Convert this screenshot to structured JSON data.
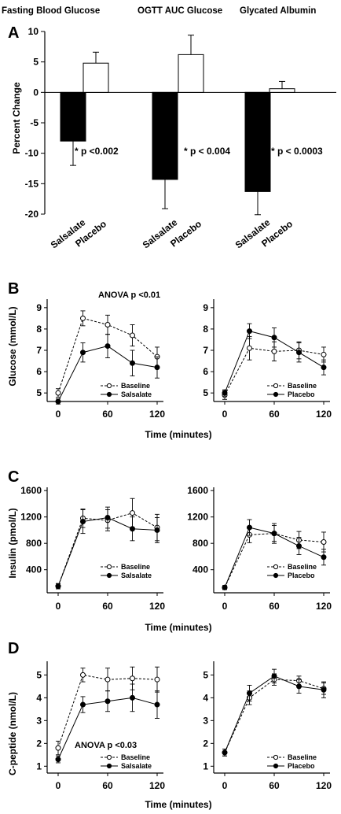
{
  "chart_data": [
    {
      "panel": "A",
      "type": "bar",
      "ylabel": "Percent Change",
      "ylim": [
        -20,
        10
      ],
      "yticks": [
        10,
        5,
        0,
        -5,
        -10,
        -15,
        -20
      ],
      "groups": [
        {
          "title": "Fasting Blood Glucose",
          "categories": [
            "Salsalate",
            "Placebo"
          ],
          "values": [
            -8,
            4.8
          ],
          "errors": [
            4,
            1.8
          ],
          "annotation": "* p <0.002"
        },
        {
          "title": "OGTT AUC Glucose",
          "categories": [
            "Salsalate",
            "Placebo"
          ],
          "values": [
            -14.3,
            6.2
          ],
          "errors": [
            4.8,
            3.2
          ],
          "annotation": "* p < 0.004"
        },
        {
          "title": "Glycated Albumin",
          "categories": [
            "Salsalate",
            "Placebo"
          ],
          "values": [
            -16.3,
            0.6
          ],
          "errors": [
            3.8,
            1.2
          ],
          "annotation": "* p < 0.0003"
        }
      ],
      "colors": {
        "salsalate": "#000000",
        "placebo": "#ffffff"
      }
    },
    {
      "panel": "B",
      "type": "line",
      "ylabel": "Glucose (mmol/L)",
      "xlabel": "Time (minutes)",
      "x": [
        0,
        30,
        60,
        90,
        120
      ],
      "xticks": [
        0,
        60,
        120
      ],
      "ylim": [
        4.6,
        9.4
      ],
      "yticks": [
        5,
        6,
        7,
        8,
        9
      ],
      "subplots": [
        {
          "annotation": "ANOVA p <0.01",
          "series": [
            {
              "name": "Baseline",
              "style": "dashed-open",
              "values": [
                5.0,
                8.5,
                8.2,
                7.7,
                6.7
              ],
              "errors": [
                0.2,
                0.35,
                0.45,
                0.5,
                0.45
              ]
            },
            {
              "name": "Salsalate",
              "style": "solid-filled",
              "values": [
                4.6,
                6.9,
                7.2,
                6.4,
                6.2
              ],
              "errors": [
                0.12,
                0.45,
                0.55,
                0.6,
                0.5
              ]
            }
          ]
        },
        {
          "annotation": "",
          "series": [
            {
              "name": "Baseline",
              "style": "dashed-open",
              "values": [
                4.9,
                7.1,
                6.95,
                7.0,
                6.8
              ],
              "errors": [
                0.2,
                0.55,
                0.45,
                0.4,
                0.35
              ]
            },
            {
              "name": "Placebo",
              "style": "solid-filled",
              "values": [
                5.0,
                7.9,
                7.6,
                6.9,
                6.2
              ],
              "errors": [
                0.15,
                0.35,
                0.45,
                0.45,
                0.35
              ]
            }
          ]
        }
      ]
    },
    {
      "panel": "C",
      "type": "line",
      "ylabel": "Insulin (pmol/L)",
      "xlabel": "Time (minutes)",
      "x": [
        0,
        30,
        60,
        90,
        120
      ],
      "xticks": [
        0,
        60,
        120
      ],
      "ylim": [
        50,
        1650
      ],
      "yticks": [
        400,
        800,
        1200,
        1600
      ],
      "subplots": [
        {
          "annotation": "",
          "series": [
            {
              "name": "Baseline",
              "style": "dashed-open",
              "values": [
                150,
                1180,
                1150,
                1260,
                1040
              ],
              "errors": [
                40,
                140,
                160,
                220,
                200
              ]
            },
            {
              "name": "Salsalate",
              "style": "solid-filled",
              "values": [
                150,
                1130,
                1190,
                1020,
                1000
              ],
              "errors": [
                40,
                180,
                160,
                180,
                190
              ]
            }
          ]
        },
        {
          "annotation": "",
          "series": [
            {
              "name": "Baseline",
              "style": "dashed-open",
              "values": [
                130,
                930,
                950,
                850,
                820
              ],
              "errors": [
                30,
                120,
                120,
                130,
                150
              ]
            },
            {
              "name": "Placebo",
              "style": "solid-filled",
              "values": [
                130,
                1040,
                950,
                760,
                590
              ],
              "errors": [
                30,
                120,
                150,
                130,
                120
              ]
            }
          ]
        }
      ]
    },
    {
      "panel": "D",
      "type": "line",
      "ylabel": "C-peptide (nmol/L)",
      "xlabel": "Time (minutes)",
      "x": [
        0,
        30,
        60,
        90,
        120
      ],
      "xticks": [
        0,
        60,
        120
      ],
      "ylim": [
        0.7,
        5.6
      ],
      "yticks": [
        1,
        2,
        3,
        4,
        5
      ],
      "subplots": [
        {
          "annotation": "ANOVA p <0.03",
          "series": [
            {
              "name": "Baseline",
              "style": "dashed-open",
              "values": [
                1.8,
                5.0,
                4.8,
                4.85,
                4.8
              ],
              "errors": [
                0.3,
                0.3,
                0.5,
                0.5,
                0.55
              ]
            },
            {
              "name": "Salsalate",
              "style": "solid-filled",
              "values": [
                1.3,
                3.7,
                3.85,
                4.0,
                3.7
              ],
              "errors": [
                0.15,
                0.35,
                0.45,
                0.6,
                0.6
              ]
            }
          ]
        },
        {
          "annotation": "",
          "series": [
            {
              "name": "Baseline",
              "style": "dashed-open",
              "values": [
                1.6,
                4.0,
                4.8,
                4.75,
                4.4
              ],
              "errors": [
                0.15,
                0.3,
                0.25,
                0.2,
                0.25
              ]
            },
            {
              "name": "Placebo",
              "style": "solid-filled",
              "values": [
                1.6,
                4.2,
                4.95,
                4.5,
                4.35
              ],
              "errors": [
                0.15,
                0.35,
                0.3,
                0.3,
                0.35
              ]
            }
          ]
        }
      ]
    }
  ]
}
